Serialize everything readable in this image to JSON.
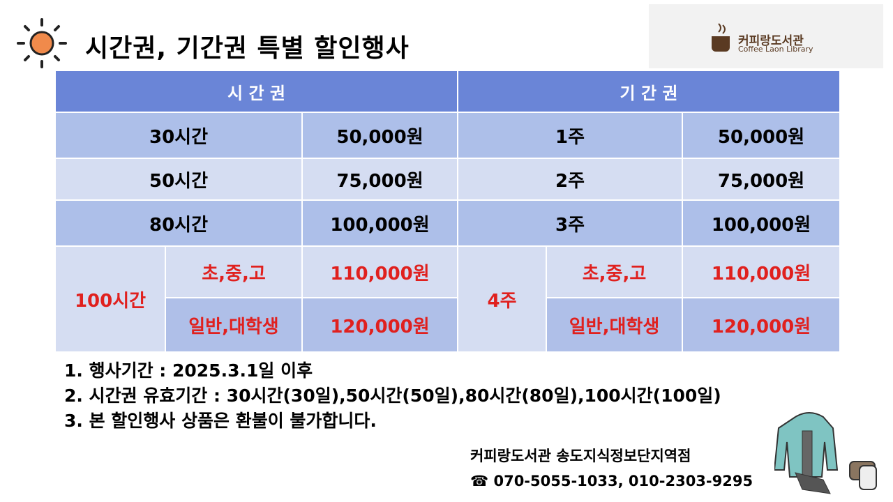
{
  "header": {
    "title": "시간권, 기간권 특별 할인행사",
    "logo_name": "커피랑도서관",
    "logo_subtitle": "Coffee Laon Library"
  },
  "table": {
    "headers": [
      "시 간 권",
      "기 간 권"
    ],
    "rows": [
      [
        "30시간",
        "50,000원",
        "1주",
        "50,000원"
      ],
      [
        "50시간",
        "75,000원",
        "2주",
        "75,000원"
      ],
      [
        "80시간",
        "100,000원",
        "3주",
        "100,000원"
      ]
    ],
    "special": {
      "hour": "100시간",
      "week": "4주",
      "tiers": [
        [
          "초,중,고",
          "110,000원",
          "초,중,고",
          "110,000원"
        ],
        [
          "일반,대학생",
          "120,000원",
          "일반,대학생",
          "120,000원"
        ]
      ]
    }
  },
  "notes": [
    "1. 행사기간 : 2025.3.1일 이후",
    "2. 시간권 유효기간 : 30시간(30일),50시간(50일),80시간(80일),100시간(100일)",
    "3. 본 할인행사 상품은 환불이 불가합니다."
  ],
  "footer": {
    "branch": "커피랑도서관 송도지식정보단지역점",
    "phone": "☎ 070-5055-1033, 010-2303-9295"
  }
}
